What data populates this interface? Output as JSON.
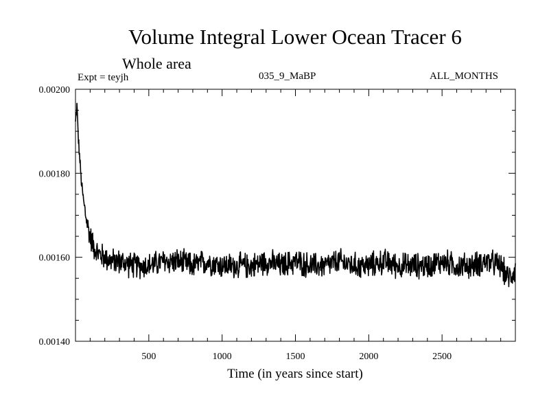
{
  "header": {
    "title": "Volume Integral Lower Ocean Tracer 6",
    "subtitle": "Whole area",
    "experiment": "Expt = teyjh",
    "period": "035_9_MaBP",
    "months": "ALL_MONTHS"
  },
  "chart_data": {
    "type": "line",
    "title": "Volume Integral Lower Ocean Tracer 6",
    "xlabel": "Time (in years since start)",
    "ylabel": "",
    "xlim": [
      0,
      3000
    ],
    "ylim": [
      0.0014,
      0.002
    ],
    "x_ticks": [
      500,
      1000,
      1500,
      2000,
      2500
    ],
    "x_tick_labels": [
      "500",
      "1000",
      "1500",
      "2000",
      "2500"
    ],
    "y_ticks": [
      0.0014,
      0.0016,
      0.0018,
      0.002
    ],
    "y_tick_labels": [
      "0.00140",
      "0.00160",
      "0.00180",
      "0.00200"
    ],
    "series": [
      {
        "name": "Tracer 6",
        "x": [
          0,
          10,
          20,
          30,
          40,
          60,
          80,
          100,
          120,
          150,
          200,
          250,
          300,
          400,
          500,
          600,
          700,
          800,
          900,
          1000,
          1100,
          1200,
          1300,
          1400,
          1500,
          1600,
          1700,
          1800,
          1900,
          2000,
          2100,
          2200,
          2300,
          2400,
          2500,
          2600,
          2700,
          2800,
          2900,
          2950,
          3000
        ],
        "values": [
          0.00192,
          0.00196,
          0.00188,
          0.00183,
          0.00178,
          0.00172,
          0.00168,
          0.00165,
          0.00163,
          0.00161,
          0.0016,
          0.00159,
          0.00159,
          0.00158,
          0.00158,
          0.00159,
          0.00159,
          0.00158,
          0.00159,
          0.00158,
          0.00158,
          0.00158,
          0.00159,
          0.00158,
          0.00159,
          0.00158,
          0.00158,
          0.00159,
          0.00158,
          0.00158,
          0.00159,
          0.00158,
          0.00158,
          0.00158,
          0.00159,
          0.00158,
          0.00158,
          0.00159,
          0.00158,
          0.00155,
          0.00157
        ],
        "noise_amplitude": 3e-05,
        "color": "#000000"
      }
    ]
  }
}
